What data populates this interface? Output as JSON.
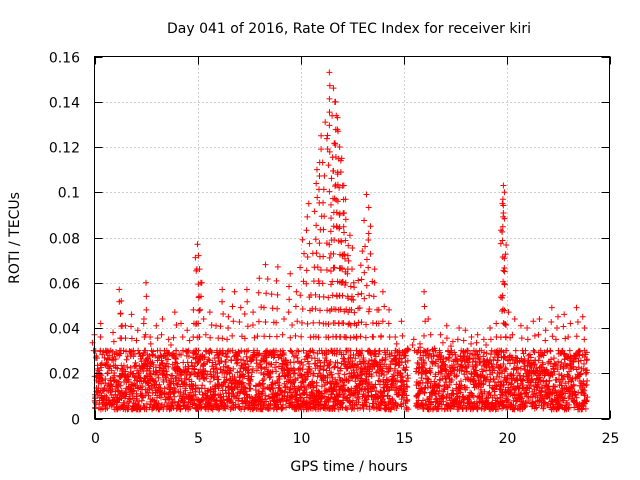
{
  "chart_data": {
    "type": "scatter",
    "title": "Day 041 of 2016, Rate Of TEC Index for receiver kiri",
    "xlabel": "GPS time / hours",
    "ylabel": "ROTI / TECUs",
    "xlim": [
      0,
      25
    ],
    "ylim": [
      0,
      0.16
    ],
    "xticks": [
      0,
      5,
      10,
      15,
      20,
      25
    ],
    "xtick_labels": [
      "0",
      "5",
      "10",
      "15",
      "20",
      "25"
    ],
    "yticks": [
      0,
      0.02,
      0.04,
      0.06,
      0.08,
      0.1,
      0.12,
      0.14,
      0.16
    ],
    "ytick_labels": [
      "0",
      "0.02",
      "0.04",
      "0.06",
      "0.08",
      "0.1",
      "0.12",
      "0.14",
      "0.16"
    ],
    "grid": true,
    "legend": "none",
    "marker": "+",
    "color": "#ff0000",
    "series": [
      {
        "name": "ROTI",
        "x": [
          0.0,
          0.3,
          0.6,
          0.9,
          1.2,
          1.3,
          1.5,
          1.8,
          2.1,
          2.4,
          2.5,
          2.7,
          3.0,
          3.3,
          3.6,
          3.9,
          4.2,
          4.5,
          4.8,
          5.0,
          5.05,
          5.1,
          5.3,
          5.6,
          5.9,
          6.2,
          6.5,
          6.8,
          7.1,
          7.4,
          7.7,
          8.0,
          8.3,
          8.6,
          8.9,
          9.2,
          9.5,
          9.8,
          10.1,
          10.4,
          10.6,
          10.8,
          11.0,
          11.2,
          11.4,
          11.6,
          11.7,
          11.8,
          11.9,
          12.0,
          12.1,
          12.2,
          12.3,
          12.4,
          12.5,
          12.6,
          12.8,
          13.0,
          13.2,
          13.4,
          13.6,
          13.8,
          14.0,
          14.3,
          14.6,
          14.9,
          15.2,
          15.5,
          15.8,
          16.0,
          16.2,
          16.5,
          16.8,
          17.1,
          17.4,
          17.7,
          18.0,
          18.3,
          18.6,
          18.9,
          19.2,
          19.5,
          19.8,
          19.85,
          19.9,
          20.1,
          20.4,
          20.7,
          21.0,
          21.3,
          21.6,
          21.9,
          22.2,
          22.5,
          22.8,
          23.1,
          23.4,
          23.7
        ],
        "y": [
          0.037,
          0.042,
          0.029,
          0.038,
          0.057,
          0.052,
          0.041,
          0.046,
          0.039,
          0.044,
          0.06,
          0.036,
          0.041,
          0.044,
          0.035,
          0.047,
          0.042,
          0.039,
          0.048,
          0.077,
          0.072,
          0.066,
          0.044,
          0.047,
          0.041,
          0.057,
          0.045,
          0.056,
          0.049,
          0.057,
          0.047,
          0.062,
          0.068,
          0.055,
          0.067,
          0.044,
          0.064,
          0.056,
          0.079,
          0.095,
          0.073,
          0.11,
          0.125,
          0.131,
          0.153,
          0.146,
          0.14,
          0.133,
          0.12,
          0.115,
          0.103,
          0.088,
          0.072,
          0.081,
          0.066,
          0.058,
          0.061,
          0.074,
          0.099,
          0.085,
          0.066,
          0.048,
          0.056,
          0.048,
          0.036,
          0.043,
          0.031,
          0.035,
          0.033,
          0.056,
          0.044,
          0.031,
          0.037,
          0.041,
          0.034,
          0.04,
          0.039,
          0.036,
          0.037,
          0.035,
          0.04,
          0.042,
          0.095,
          0.103,
          0.1,
          0.047,
          0.044,
          0.041,
          0.04,
          0.043,
          0.044,
          0.039,
          0.049,
          0.045,
          0.046,
          0.042,
          0.049,
          0.045
        ]
      }
    ],
    "noise_floor": {
      "description": "dense band of points between 0.005 and 0.03 TECU across the day",
      "x_ranges": [
        [
          0,
          15.2
        ],
        [
          15.6,
          23.9
        ]
      ],
      "y_range": [
        0.004,
        0.03
      ]
    }
  }
}
